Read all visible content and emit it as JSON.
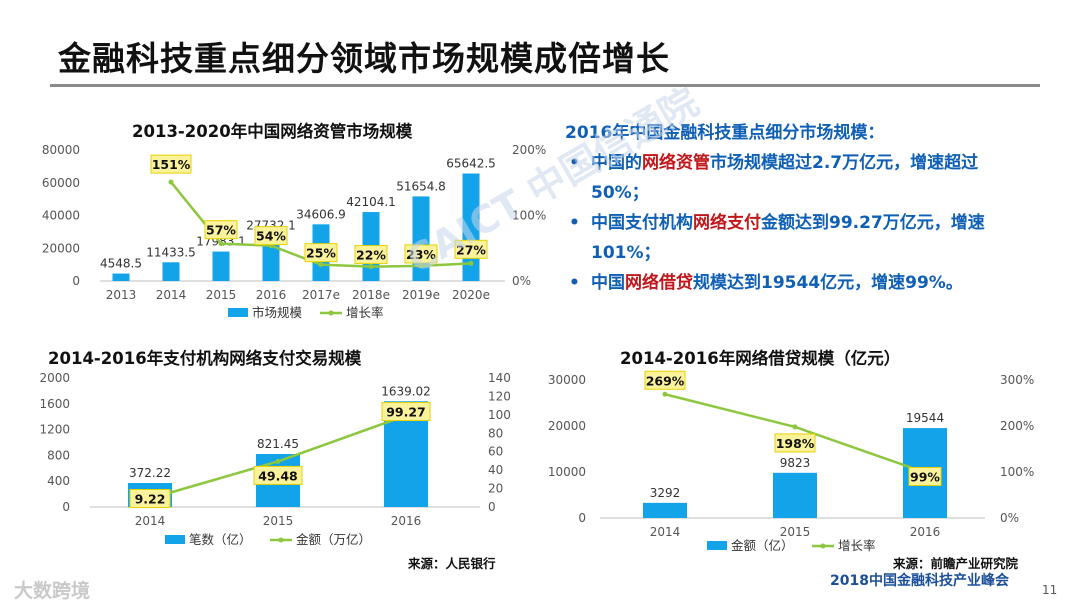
{
  "page": {
    "title": "金融科技重点细分领域市场规模成倍增长",
    "page_number": "11",
    "footer_brand": "2018中国金融科技产业峰会",
    "watermark": "CAICT 中国信通院",
    "corner_logo": "大数跨境"
  },
  "summary": {
    "heading": "2016年中国金融科技重点细分市场规模：",
    "bullets": [
      {
        "pre": "中国的",
        "hl": "网络资管",
        "post": "市场规模超过2.7万亿元，增速超过50%；"
      },
      {
        "pre": "中国支付机构",
        "hl": "网络支付",
        "post": "金额达到99.27万亿元，增速101%；"
      },
      {
        "pre": "中国",
        "hl": "网络借贷",
        "post": "规模达到19544亿元，增速99%。"
      }
    ]
  },
  "colors": {
    "bar": "#12a3e8",
    "line": "#8dc63f",
    "highlight": "#fbf39b",
    "highlight_border": "#e7d100"
  },
  "chart_data": [
    {
      "type": "bar",
      "title": "2013-2020年中国网络资管市场规模",
      "categories": [
        "2013",
        "2014",
        "2015",
        "2016",
        "2017e",
        "2018e",
        "2019e",
        "2020e"
      ],
      "series": [
        {
          "name": "市场规模",
          "axis": "left",
          "values": [
            4548.5,
            11433.5,
            17983.1,
            27732.1,
            34606.9,
            42104.1,
            51654.8,
            65642.5
          ],
          "labels": [
            "4548.5",
            "11433.5",
            "17983.1",
            "27732.1",
            "34606.9",
            "42104.1",
            "51654.8",
            "65642.5"
          ]
        },
        {
          "name": "增长率",
          "type": "line",
          "axis": "right",
          "values": [
            null,
            151,
            57,
            54,
            25,
            22,
            23,
            27
          ],
          "labels": [
            "",
            "151%",
            "57%",
            "54%",
            "25%",
            "22%",
            "23%",
            "27%"
          ]
        }
      ],
      "ylim_left": [
        0,
        80000
      ],
      "yticks_left": [
        "0",
        "20000",
        "40000",
        "60000",
        "80000"
      ],
      "ylim_right": [
        0,
        200
      ],
      "yticks_right": [
        "0%",
        "100%",
        "200%"
      ],
      "legend": "bottom"
    },
    {
      "type": "bar",
      "title": "2014-2016年支付机构网络支付交易规模",
      "categories": [
        "2014",
        "2015",
        "2016"
      ],
      "series": [
        {
          "name": "笔数（亿）",
          "axis": "left",
          "values": [
            372.22,
            821.45,
            1639.02
          ],
          "labels": [
            "372.22",
            "821.45",
            "1639.02"
          ]
        },
        {
          "name": "金额（万亿）",
          "type": "line",
          "axis": "right",
          "values": [
            9.22,
            49.48,
            99.27
          ],
          "labels": [
            "9.22",
            "49.48",
            "99.27"
          ]
        }
      ],
      "ylim_left": [
        0,
        2000
      ],
      "yticks_left": [
        "0",
        "400",
        "800",
        "1200",
        "1600",
        "2000"
      ],
      "ylim_right": [
        0,
        140
      ],
      "yticks_right": [
        "0",
        "20",
        "40",
        "60",
        "80",
        "100",
        "120",
        "140"
      ],
      "legend": "bottom",
      "source": "来源：人民银行"
    },
    {
      "type": "bar",
      "title": "2014-2016年网络借贷规模（亿元）",
      "categories": [
        "2014",
        "2015",
        "2016"
      ],
      "series": [
        {
          "name": "金额（亿）",
          "axis": "left",
          "values": [
            3292,
            9823,
            19544
          ],
          "labels": [
            "3292",
            "9823",
            "19544"
          ]
        },
        {
          "name": "增长率",
          "type": "line",
          "axis": "right",
          "values": [
            269,
            198,
            99
          ],
          "labels": [
            "269%",
            "198%",
            "99%"
          ]
        }
      ],
      "ylim_left": [
        0,
        30000
      ],
      "yticks_left": [
        "0",
        "10000",
        "20000",
        "30000"
      ],
      "ylim_right": [
        0,
        300
      ],
      "yticks_right": [
        "0%",
        "100%",
        "200%",
        "300%"
      ],
      "legend": "bottom",
      "source": "来源：前瞻产业研究院"
    }
  ]
}
